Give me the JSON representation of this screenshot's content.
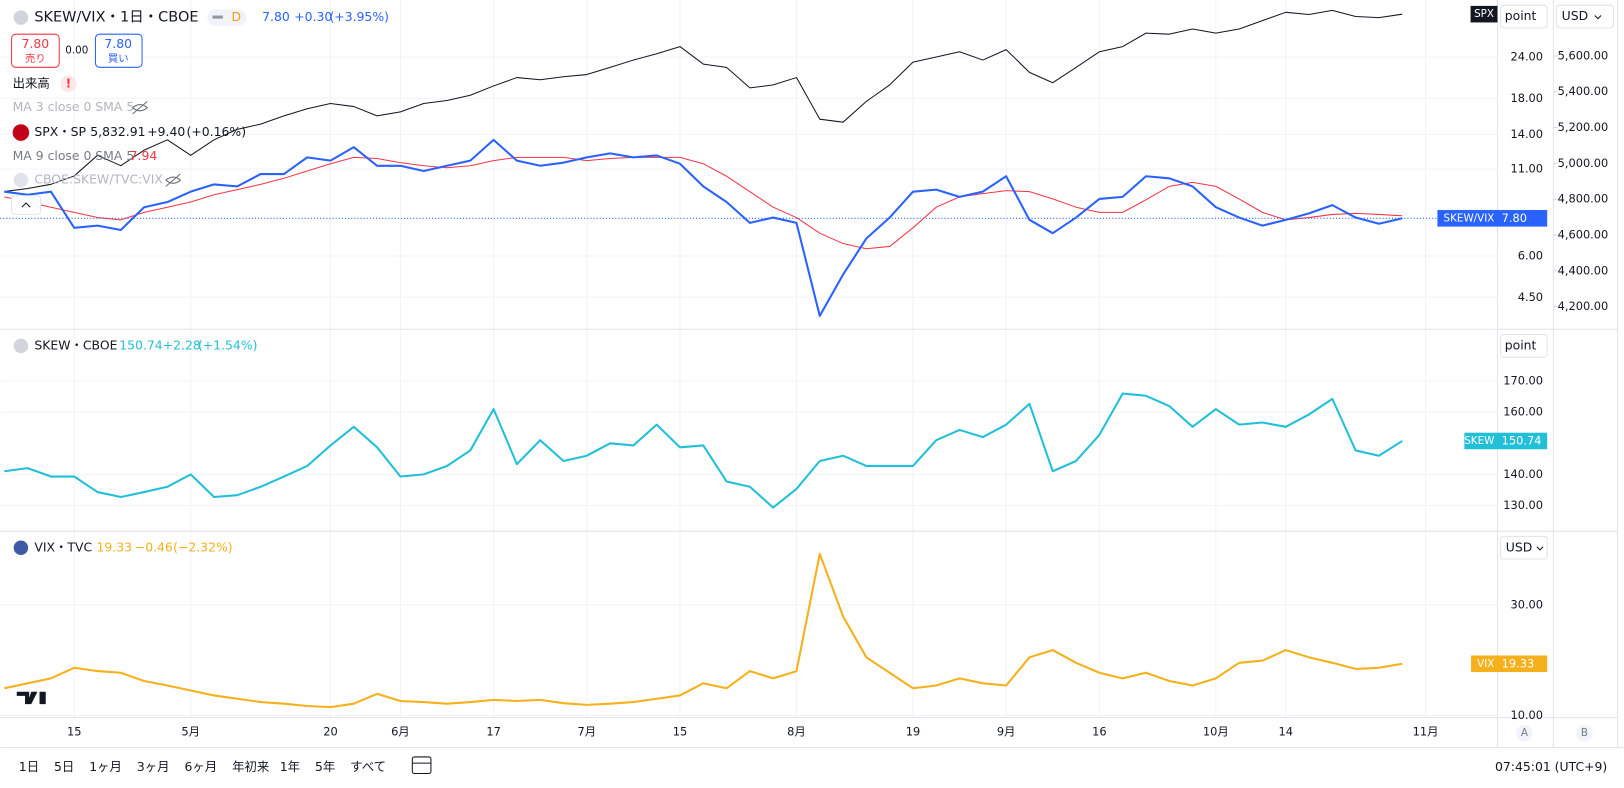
{
  "chart_data": [
    {
      "type": "line",
      "log_scale": true,
      "grid": true,
      "ylim": [
        3.6,
        35.7
      ],
      "yticks": [
        {
          "value": 24,
          "label": "24.00"
        },
        {
          "value": 18,
          "label": "18.00"
        },
        {
          "value": 14,
          "label": "14.00"
        },
        {
          "value": 11,
          "label": "11.00"
        },
        {
          "value": 6,
          "label": "6.00"
        },
        {
          "value": 4.5,
          "label": "4.50"
        }
      ],
      "y2lim": [
        4074,
        5912
      ],
      "y2ticks": [
        {
          "value": 5600,
          "label": "5,600.00"
        },
        {
          "value": 5400,
          "label": "5,400.00"
        },
        {
          "value": 5200,
          "label": "5,200.00"
        },
        {
          "value": 5000,
          "label": "5,000.00"
        },
        {
          "value": 4800,
          "label": "4,800.00"
        },
        {
          "value": 4600,
          "label": "4,600.00"
        },
        {
          "value": 4400,
          "label": "4,400.00"
        },
        {
          "value": 4200,
          "label": "4,200.00"
        }
      ],
      "series": [
        {
          "name": "SKEW/VIX",
          "color": "#2962ff",
          "last_label": "7.80",
          "values": [
            9.39,
            9.19,
            9.39,
            7.3,
            7.41,
            7.19,
            8.43,
            8.74,
            9.39,
            9.88,
            9.74,
            10.62,
            10.62,
            11.92,
            11.66,
            12.81,
            11.25,
            11.25,
            10.85,
            11.25,
            11.66,
            13.47,
            11.66,
            11.25,
            11.49,
            11.92,
            12.26,
            11.92,
            12.09,
            11.41,
            9.74,
            8.74,
            7.56,
            7.84,
            7.56,
            3.95,
            5.27,
            6.78,
            7.84,
            9.39,
            9.53,
            9.06,
            9.39,
            10.46,
            7.72,
            7.03,
            7.84,
            8.93,
            9.06,
            10.46,
            10.31,
            9.74,
            8.43,
            7.84,
            7.41,
            7.72,
            8.07,
            8.55,
            7.84,
            7.51,
            7.8,
            null
          ]
        },
        {
          "name": "MA 9 close 0 SMA 5",
          "color": "#f23645",
          "last_label": "7.94",
          "values": [
            9.06,
            8.74,
            8.43,
            8.13,
            7.84,
            7.72,
            8.13,
            8.43,
            8.74,
            9.19,
            9.53,
            9.88,
            10.31,
            10.85,
            11.41,
            11.92,
            11.83,
            11.49,
            11.25,
            11.09,
            11.25,
            11.66,
            11.92,
            11.92,
            11.92,
            11.66,
            11.83,
            11.92,
            11.92,
            11.92,
            11.41,
            10.46,
            9.39,
            8.43,
            7.84,
            7.03,
            6.54,
            6.31,
            6.41,
            7.3,
            8.43,
            9.06,
            9.26,
            9.46,
            9.39,
            8.93,
            8.43,
            8.13,
            8.13,
            8.87,
            9.74,
            10.02,
            9.74,
            8.93,
            8.13,
            7.72,
            7.84,
            8.01,
            8.07,
            8.01,
            7.94,
            null
          ]
        },
        {
          "name": "SPX",
          "color": "#131722",
          "axis": "y2",
          "values": [
            4843,
            4860,
            4883,
            4930,
            5045,
            4987,
            5074,
            5132,
            5045,
            5132,
            5190,
            5219,
            5265,
            5305,
            5334,
            5317,
            5265,
            5288,
            5334,
            5351,
            5380,
            5432,
            5479,
            5467,
            5484,
            5496,
            5536,
            5577,
            5612,
            5652,
            5554,
            5536,
            5421,
            5438,
            5479,
            5247,
            5230,
            5346,
            5438,
            5565,
            5594,
            5623,
            5577,
            5635,
            5508,
            5450,
            5536,
            5623,
            5652,
            5727,
            5721,
            5750,
            5727,
            5750,
            5797,
            5843,
            5831,
            5854,
            5820,
            5814,
            5832.91,
            null
          ]
        }
      ]
    },
    {
      "type": "line",
      "grid": true,
      "ylim": [
        121.7,
        186.7
      ],
      "yticks": [
        {
          "value": 170,
          "label": "170.00"
        },
        {
          "value": 160,
          "label": "160.00"
        },
        {
          "value": 140,
          "label": "140.00"
        },
        {
          "value": 130,
          "label": "130.00"
        }
      ],
      "series": [
        {
          "name": "SKEW",
          "color": "#22c0d8",
          "last_label": "150.74",
          "values": [
            141.0,
            142.0,
            139.3,
            139.3,
            134.3,
            132.7,
            134.3,
            136.0,
            140.0,
            132.7,
            133.3,
            136.0,
            139.3,
            142.7,
            149.3,
            155.3,
            148.7,
            139.3,
            140.0,
            142.7,
            147.7,
            161.0,
            143.3,
            151.0,
            144.3,
            146.0,
            150.0,
            149.3,
            156.0,
            148.7,
            149.3,
            137.7,
            136.0,
            129.3,
            135.3,
            144.3,
            146.0,
            142.7,
            142.7,
            142.7,
            151.0,
            154.3,
            152.0,
            156.0,
            162.7,
            141.0,
            144.3,
            152.7,
            166.0,
            165.3,
            162.0,
            155.3,
            161.0,
            156.0,
            156.7,
            155.3,
            159.3,
            164.3,
            147.7,
            146.0,
            150.74,
            null
          ]
        }
      ]
    },
    {
      "type": "line",
      "grid": true,
      "categories": [
        null,
        null,
        null,
        "15",
        null,
        null,
        null,
        null,
        "5月",
        null,
        null,
        null,
        null,
        null,
        "20",
        null,
        null,
        "6月",
        null,
        null,
        null,
        "17",
        null,
        null,
        null,
        "7月",
        null,
        null,
        null,
        "15",
        null,
        null,
        null,
        null,
        "8月",
        null,
        null,
        null,
        null,
        "19",
        null,
        null,
        null,
        "9月",
        null,
        null,
        null,
        "16",
        null,
        null,
        null,
        null,
        "10月",
        null,
        null,
        "14",
        null,
        null,
        null,
        null,
        null,
        "11月"
      ],
      "ylim": [
        9.6,
        43.3
      ],
      "yticks": [
        {
          "value": 30,
          "label": "30.00"
        },
        {
          "value": 10,
          "label": "10.00"
        }
      ],
      "series": [
        {
          "name": "VIX",
          "color": "#f5b01c",
          "last_label": "19.33",
          "values": [
            14.9,
            15.8,
            16.7,
            18.6,
            18.0,
            17.7,
            16.2,
            15.4,
            14.5,
            13.6,
            13.0,
            12.4,
            12.1,
            11.7,
            11.5,
            12.1,
            13.9,
            12.6,
            12.4,
            12.1,
            12.4,
            12.8,
            12.6,
            12.8,
            12.2,
            11.9,
            12.1,
            12.4,
            13.0,
            13.6,
            15.8,
            14.9,
            18.0,
            16.7,
            18.0,
            39.2,
            27.9,
            20.5,
            17.7,
            14.9,
            15.4,
            16.7,
            15.8,
            15.4,
            20.5,
            21.8,
            19.5,
            17.7,
            16.7,
            17.7,
            16.2,
            15.4,
            16.7,
            19.5,
            19.9,
            21.8,
            20.5,
            19.5,
            18.4,
            18.6,
            19.33,
            null
          ]
        }
      ]
    }
  ],
  "ui": {
    "header": {
      "symbol": "SKEW/VIX・1日・CBOE",
      "badge": "D",
      "last": "7.80",
      "change": "+0.30",
      "change_pct": "(+3.95%)"
    },
    "trade": {
      "sell_price": "7.80",
      "sell": "売り",
      "spread": "0.00",
      "buy_price": "7.80",
      "buy": "買い"
    },
    "volume": "出来高",
    "warning": "!",
    "ma3": "MA 3 close 0 SMA 5",
    "spx_legend": {
      "symbol": "SPX・SP",
      "last": "5,832.91",
      "change": "+9.40",
      "change_pct": "(+0.16%)"
    },
    "ratio_legend": "CBOE:SKEW/TVC:VIX",
    "skew_legend": {
      "symbol": "SKEW・CBOE",
      "last": "150.74",
      "change": "+2.28",
      "change_pct": "(+1.54%)"
    },
    "vix_legend": {
      "symbol": "VIX・TVC",
      "last": "19.33",
      "change": "−0.46",
      "change_pct": "(−2.32%)"
    },
    "scale_buttons": [
      "point",
      "USD",
      "point",
      "USD"
    ],
    "axis_buttons": [
      "A",
      "B"
    ],
    "ranges": [
      "1日",
      "5日",
      "1ヶ月",
      "3ヶ月",
      "6ヶ月",
      "年初来",
      "1年",
      "5年",
      "すべて"
    ],
    "clock": "07:45:01 (UTC+9)"
  }
}
